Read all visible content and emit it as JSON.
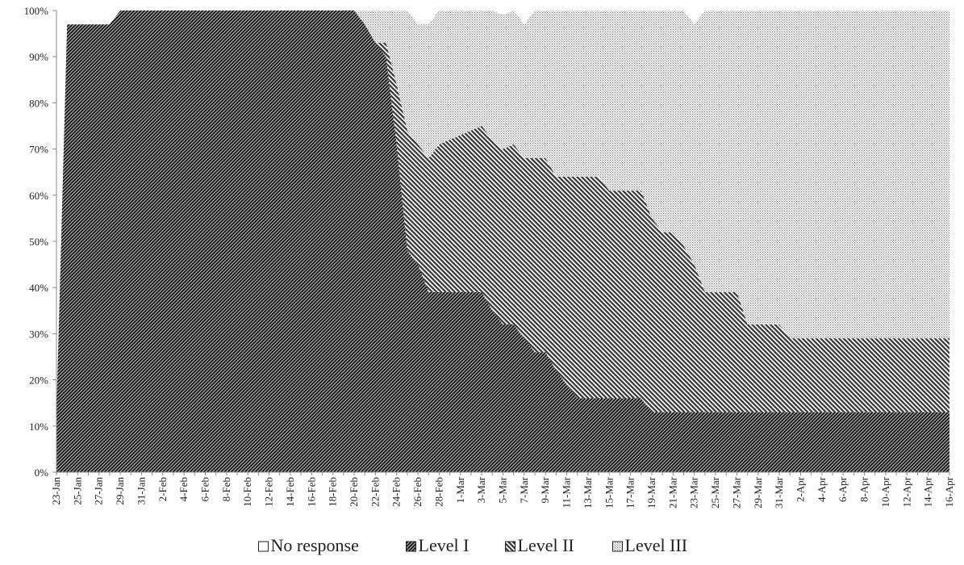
{
  "chart_data": {
    "type": "area",
    "stacked": "percent",
    "title": "",
    "xlabel": "",
    "ylabel": "",
    "ylim": [
      0,
      100
    ],
    "y_ticks": [
      "0%",
      "10%",
      "20%",
      "30%",
      "40%",
      "50%",
      "60%",
      "70%",
      "80%",
      "90%",
      "100%"
    ],
    "x_range": [
      "23-Jan",
      "16-Apr"
    ],
    "x_tick_labels": [
      "23-Jan",
      "25-Jan",
      "27-Jan",
      "29-Jan",
      "31-Jan",
      "2-Feb",
      "4-Feb",
      "6-Feb",
      "8-Feb",
      "10-Feb",
      "12-Feb",
      "14-Feb",
      "16-Feb",
      "18-Feb",
      "20-Feb",
      "22-Feb",
      "24-Feb",
      "26-Feb",
      "28-Feb",
      "1-Mar",
      "3-Mar",
      "5-Mar",
      "7-Mar",
      "9-Mar",
      "11-Mar",
      "13-Mar",
      "15-Mar",
      "17-Mar",
      "19-Mar",
      "21-Mar",
      "23-Mar",
      "25-Mar",
      "27-Mar",
      "29-Mar",
      "31-Mar",
      "2-Apr",
      "4-Apr",
      "6-Apr",
      "8-Apr",
      "10-Apr",
      "12-Apr",
      "14-Apr",
      "16-Apr"
    ],
    "grid": false,
    "legend": "bottom",
    "series_order": "bottom-to-top",
    "series": [
      {
        "name": "Level I",
        "pattern": "dense-diagonal",
        "color": "#1a1a1a",
        "points": [
          [
            "23-Jan",
            13
          ],
          [
            "24-Jan",
            97
          ],
          [
            "28-Jan",
            97
          ],
          [
            "29-Jan",
            100
          ],
          [
            "20-Feb",
            100
          ],
          [
            "21-Feb",
            97
          ],
          [
            "22-Feb",
            93
          ],
          [
            "23-Feb",
            90
          ],
          [
            "24-Feb",
            71
          ],
          [
            "25-Feb",
            48
          ],
          [
            "26-Feb",
            45
          ],
          [
            "27-Feb",
            39
          ],
          [
            "3-Mar",
            39
          ],
          [
            "4-Mar",
            35
          ],
          [
            "5-Mar",
            32
          ],
          [
            "6-Mar",
            32
          ],
          [
            "8-Mar",
            26
          ],
          [
            "9-Mar",
            26
          ],
          [
            "10-Mar",
            22
          ],
          [
            "11-Mar",
            19
          ],
          [
            "12-Mar",
            16
          ],
          [
            "18-Mar",
            16
          ],
          [
            "19-Mar",
            13
          ],
          [
            "16-Apr",
            13
          ]
        ]
      },
      {
        "name": "Level II",
        "pattern": "diagonal",
        "color": "#333333",
        "points": [
          [
            "23-Jan",
            0
          ],
          [
            "20-Feb",
            0
          ],
          [
            "22-Feb",
            0
          ],
          [
            "23-Feb",
            3
          ],
          [
            "24-Feb",
            13
          ],
          [
            "25-Feb",
            26
          ],
          [
            "26-Feb",
            26
          ],
          [
            "27-Feb",
            29
          ],
          [
            "28-Feb",
            32
          ],
          [
            "6-Mar",
            39
          ],
          [
            "7-Mar",
            39
          ],
          [
            "8-Mar",
            42
          ],
          [
            "9-Mar",
            42
          ],
          [
            "10-Mar",
            42
          ],
          [
            "11-Mar",
            45
          ],
          [
            "12-Mar",
            48
          ],
          [
            "14-Mar",
            48
          ],
          [
            "15-Mar",
            45
          ],
          [
            "18-Mar",
            45
          ],
          [
            "19-Mar",
            42
          ],
          [
            "20-Mar",
            39
          ],
          [
            "21-Mar",
            39
          ],
          [
            "22-Mar",
            36
          ],
          [
            "23-Mar",
            32
          ],
          [
            "24-Mar",
            26
          ],
          [
            "27-Mar",
            26
          ],
          [
            "28-Mar",
            19
          ],
          [
            "31-Mar",
            19
          ],
          [
            "1-Apr",
            16
          ],
          [
            "16-Apr",
            16
          ]
        ]
      },
      {
        "name": "Level III",
        "pattern": "dotted",
        "color": "#777777",
        "points": [
          [
            "23-Jan",
            0
          ],
          [
            "20-Feb",
            0
          ],
          [
            "21-Feb",
            3
          ],
          [
            "22-Feb",
            7
          ],
          [
            "23-Feb",
            7
          ],
          [
            "24-Feb",
            16
          ],
          [
            "25-Feb",
            26
          ],
          [
            "26-Feb",
            26
          ],
          [
            "27-Feb",
            29
          ],
          [
            "28-Feb",
            29
          ],
          [
            "5-Mar",
            29
          ],
          [
            "6-Mar",
            29
          ],
          [
            "7-Mar",
            29
          ],
          [
            "8-Mar",
            32
          ],
          [
            "9-Mar",
            32
          ],
          [
            "10-Mar",
            36
          ],
          [
            "11-Mar",
            36
          ],
          [
            "14-Mar",
            36
          ],
          [
            "15-Mar",
            39
          ],
          [
            "18-Mar",
            39
          ],
          [
            "19-Mar",
            45
          ],
          [
            "20-Mar",
            48
          ],
          [
            "21-Mar",
            48
          ],
          [
            "22-Mar",
            52
          ],
          [
            "23-Mar",
            52
          ],
          [
            "24-Mar",
            61
          ],
          [
            "27-Mar",
            61
          ],
          [
            "28-Mar",
            68
          ],
          [
            "31-Mar",
            68
          ],
          [
            "1-Apr",
            71
          ],
          [
            "16-Apr",
            71
          ]
        ]
      },
      {
        "name": "No response",
        "pattern": "none",
        "color": "#ffffff",
        "points": [
          [
            "23-Jan",
            87
          ],
          [
            "24-Jan",
            3
          ],
          [
            "28-Jan",
            3
          ],
          [
            "29-Jan",
            0
          ],
          [
            "16-Apr",
            0
          ]
        ]
      }
    ],
    "legend_order": [
      "No response",
      "Level I",
      "Level II",
      "Level III"
    ]
  }
}
